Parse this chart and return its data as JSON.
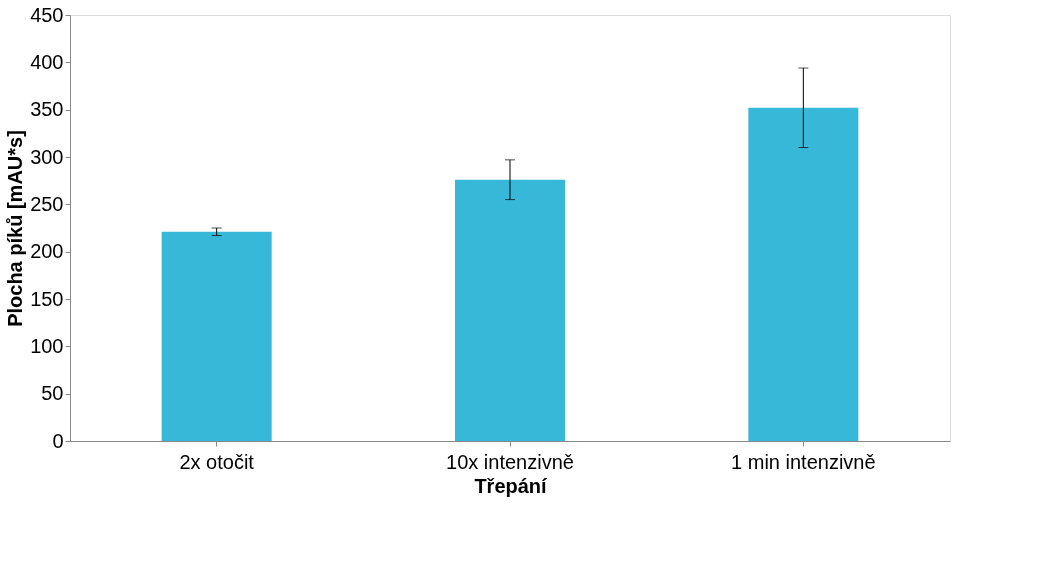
{
  "chart_data": {
    "type": "bar",
    "xlabel": "Třepání",
    "ylabel": "Plocha píků [mAU*s]",
    "categories": [
      "2x otočit",
      "10x intenzivně",
      "1 min intenzivně"
    ],
    "values": [
      221,
      276,
      352
    ],
    "errors": [
      4,
      21,
      42
    ],
    "color": "#38b8d8",
    "ylim": [
      0,
      450
    ],
    "yticks": [
      0,
      50,
      100,
      150,
      200,
      250,
      300,
      350,
      400,
      450
    ],
    "grid": false
  }
}
